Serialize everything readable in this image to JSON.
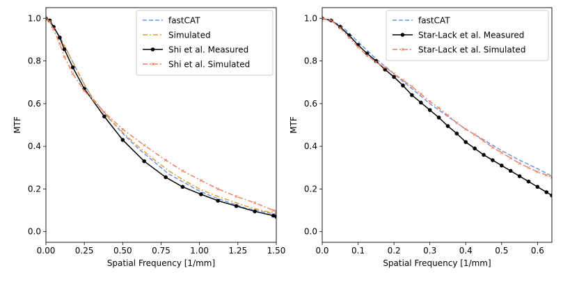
{
  "chart_data": [
    {
      "type": "line",
      "xlabel": "Spatial Frequency [1/mm]",
      "ylabel": "MTF",
      "xlim": [
        0.0,
        1.5
      ],
      "ylim": [
        -0.05,
        1.05
      ],
      "xticks": [
        0.0,
        0.25,
        0.5,
        0.75,
        1.0,
        1.25,
        1.5
      ],
      "xtick_labels": [
        "0.00",
        "0.25",
        "0.50",
        "0.75",
        "1.00",
        "1.25",
        "1.50"
      ],
      "yticks": [
        0.0,
        0.2,
        0.4,
        0.6,
        0.8,
        1.0
      ],
      "ytick_labels": [
        "0.0",
        "0.2",
        "0.4",
        "0.6",
        "0.8",
        "1.0"
      ],
      "grid": false,
      "legend_position": "top-right",
      "series": [
        {
          "name": "fastCAT",
          "color": "#6495ED",
          "style": "dashed",
          "marker": "none",
          "x": [
            0.0,
            0.05,
            0.1,
            0.15,
            0.2,
            0.25,
            0.3,
            0.4,
            0.5,
            0.6,
            0.7,
            0.8,
            0.9,
            1.0,
            1.1,
            1.2,
            1.3,
            1.4,
            1.5
          ],
          "y": [
            1.0,
            0.96,
            0.9,
            0.83,
            0.76,
            0.69,
            0.63,
            0.54,
            0.46,
            0.39,
            0.33,
            0.27,
            0.23,
            0.19,
            0.16,
            0.135,
            0.11,
            0.095,
            0.08
          ]
        },
        {
          "name": "Simulated",
          "color": "#E69A2E",
          "style": "dashdot",
          "marker": "none",
          "x": [
            0.0,
            0.05,
            0.1,
            0.15,
            0.2,
            0.25,
            0.3,
            0.4,
            0.5,
            0.6,
            0.7,
            0.8,
            0.9,
            1.0,
            1.1,
            1.2,
            1.3,
            1.4,
            1.5
          ],
          "y": [
            1.0,
            0.96,
            0.9,
            0.83,
            0.76,
            0.69,
            0.63,
            0.54,
            0.465,
            0.4,
            0.34,
            0.285,
            0.24,
            0.2,
            0.17,
            0.145,
            0.12,
            0.1,
            0.085
          ]
        },
        {
          "name": "Shi et al. Measured",
          "color": "#000000",
          "style": "solid",
          "marker": "circle",
          "x": [
            0.0,
            0.025,
            0.05,
            0.09,
            0.12,
            0.175,
            0.25,
            0.38,
            0.5,
            0.64,
            0.78,
            0.89,
            1.01,
            1.12,
            1.24,
            1.36,
            1.48,
            1.5
          ],
          "y": [
            1.0,
            0.99,
            0.96,
            0.91,
            0.855,
            0.77,
            0.67,
            0.54,
            0.43,
            0.33,
            0.255,
            0.21,
            0.175,
            0.145,
            0.12,
            0.095,
            0.075,
            0.07
          ]
        },
        {
          "name": "Shi et al. Simulated",
          "color": "#F08060",
          "style": "dashdot",
          "marker": "x",
          "x": [
            0.0,
            0.025,
            0.05,
            0.09,
            0.12,
            0.175,
            0.25,
            0.38,
            0.5,
            0.64,
            0.78,
            0.89,
            1.01,
            1.12,
            1.24,
            1.36,
            1.48,
            1.5
          ],
          "y": [
            1.0,
            0.985,
            0.95,
            0.88,
            0.82,
            0.74,
            0.66,
            0.56,
            0.48,
            0.405,
            0.335,
            0.285,
            0.24,
            0.2,
            0.165,
            0.135,
            0.1,
            0.095
          ]
        }
      ]
    },
    {
      "type": "line",
      "xlabel": "Spatial Frequency [1/mm]",
      "ylabel": "MTF",
      "xlim": [
        0.0,
        0.64
      ],
      "ylim": [
        -0.05,
        1.05
      ],
      "xticks": [
        0.0,
        0.1,
        0.2,
        0.3,
        0.4,
        0.5,
        0.6
      ],
      "xtick_labels": [
        "0.0",
        "0.1",
        "0.2",
        "0.3",
        "0.4",
        "0.5",
        "0.6"
      ],
      "yticks": [
        0.0,
        0.2,
        0.4,
        0.6,
        0.8,
        1.0
      ],
      "ytick_labels": [
        "0.0",
        "0.2",
        "0.4",
        "0.6",
        "0.8",
        "1.0"
      ],
      "grid": false,
      "legend_position": "top-right",
      "series": [
        {
          "name": "fastCAT",
          "color": "#6495ED",
          "style": "dashed",
          "marker": "none",
          "x": [
            0.0,
            0.05,
            0.1,
            0.15,
            0.2,
            0.25,
            0.3,
            0.35,
            0.4,
            0.45,
            0.5,
            0.55,
            0.6,
            0.64
          ],
          "y": [
            1.0,
            0.97,
            0.89,
            0.81,
            0.74,
            0.67,
            0.6,
            0.54,
            0.48,
            0.43,
            0.38,
            0.335,
            0.295,
            0.26
          ]
        },
        {
          "name": "Star-Lack et al. Measured",
          "color": "#000000",
          "style": "solid",
          "marker": "circle",
          "x": [
            0.0,
            0.025,
            0.05,
            0.075,
            0.1,
            0.125,
            0.15,
            0.175,
            0.2,
            0.225,
            0.25,
            0.275,
            0.3,
            0.325,
            0.35,
            0.375,
            0.4,
            0.425,
            0.45,
            0.475,
            0.5,
            0.525,
            0.55,
            0.575,
            0.6,
            0.625,
            0.64
          ],
          "y": [
            1.0,
            0.99,
            0.96,
            0.92,
            0.875,
            0.835,
            0.8,
            0.76,
            0.725,
            0.685,
            0.64,
            0.605,
            0.57,
            0.535,
            0.495,
            0.46,
            0.42,
            0.39,
            0.36,
            0.335,
            0.31,
            0.285,
            0.26,
            0.235,
            0.21,
            0.185,
            0.17
          ]
        },
        {
          "name": "Star-Lack et al. Simulated",
          "color": "#F08060",
          "style": "dashdot",
          "marker": "x",
          "x": [
            0.0,
            0.025,
            0.05,
            0.075,
            0.1,
            0.125,
            0.15,
            0.175,
            0.2,
            0.225,
            0.25,
            0.275,
            0.3,
            0.325,
            0.35,
            0.375,
            0.4,
            0.425,
            0.45,
            0.475,
            0.5,
            0.525,
            0.55,
            0.575,
            0.6,
            0.625,
            0.64
          ],
          "y": [
            1.0,
            0.99,
            0.955,
            0.91,
            0.865,
            0.825,
            0.795,
            0.77,
            0.74,
            0.71,
            0.68,
            0.645,
            0.61,
            0.58,
            0.545,
            0.51,
            0.48,
            0.455,
            0.425,
            0.395,
            0.37,
            0.345,
            0.32,
            0.3,
            0.28,
            0.265,
            0.255
          ]
        }
      ]
    }
  ]
}
